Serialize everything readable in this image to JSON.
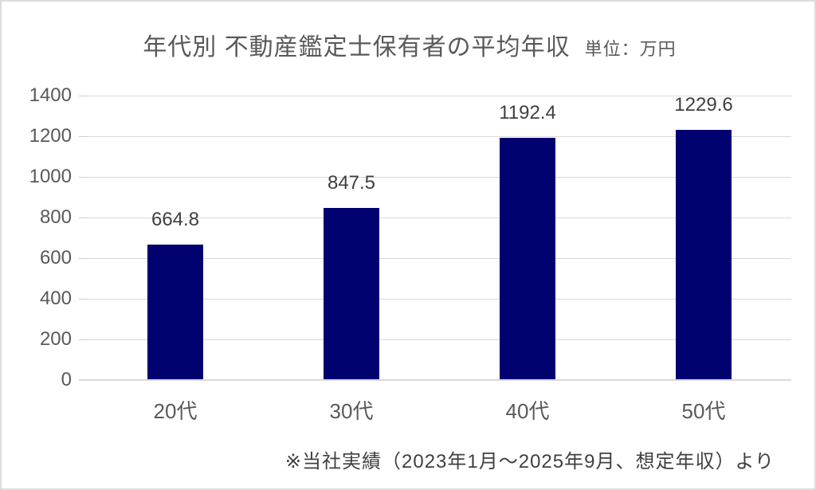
{
  "title": {
    "text": "年代別 不動産鑑定士保有者の平均年収",
    "unit": "単位：万円"
  },
  "footer": {
    "source_note": "※当社実績（2023年1月～2025年9月、想定年収）より"
  },
  "chart_data": {
    "type": "bar",
    "title": "年代別 不動産鑑定士保有者の平均年収",
    "unit_label": "単位：万円",
    "categories": [
      "20代",
      "30代",
      "40代",
      "50代"
    ],
    "values": [
      664.8,
      847.5,
      1192.4,
      1229.6
    ],
    "data_labels": [
      "664.8",
      "847.5",
      "1192.4",
      "1229.6"
    ],
    "xlabel": "",
    "ylabel": "",
    "ylim": [
      0,
      1400
    ],
    "ytick_step": 200,
    "ytick_labels": [
      "0",
      "200",
      "400",
      "600",
      "800",
      "1000",
      "1200",
      "1400"
    ],
    "grid": true,
    "legend": false,
    "source_note": "※当社実績（2023年1月～2025年9月、想定年収）より",
    "colors": {
      "bar": "#01016F",
      "gridline": "#d9d9d9",
      "axis_text": "#595959",
      "label_text": "#404040",
      "frame_border": "#dcdcdc"
    }
  }
}
